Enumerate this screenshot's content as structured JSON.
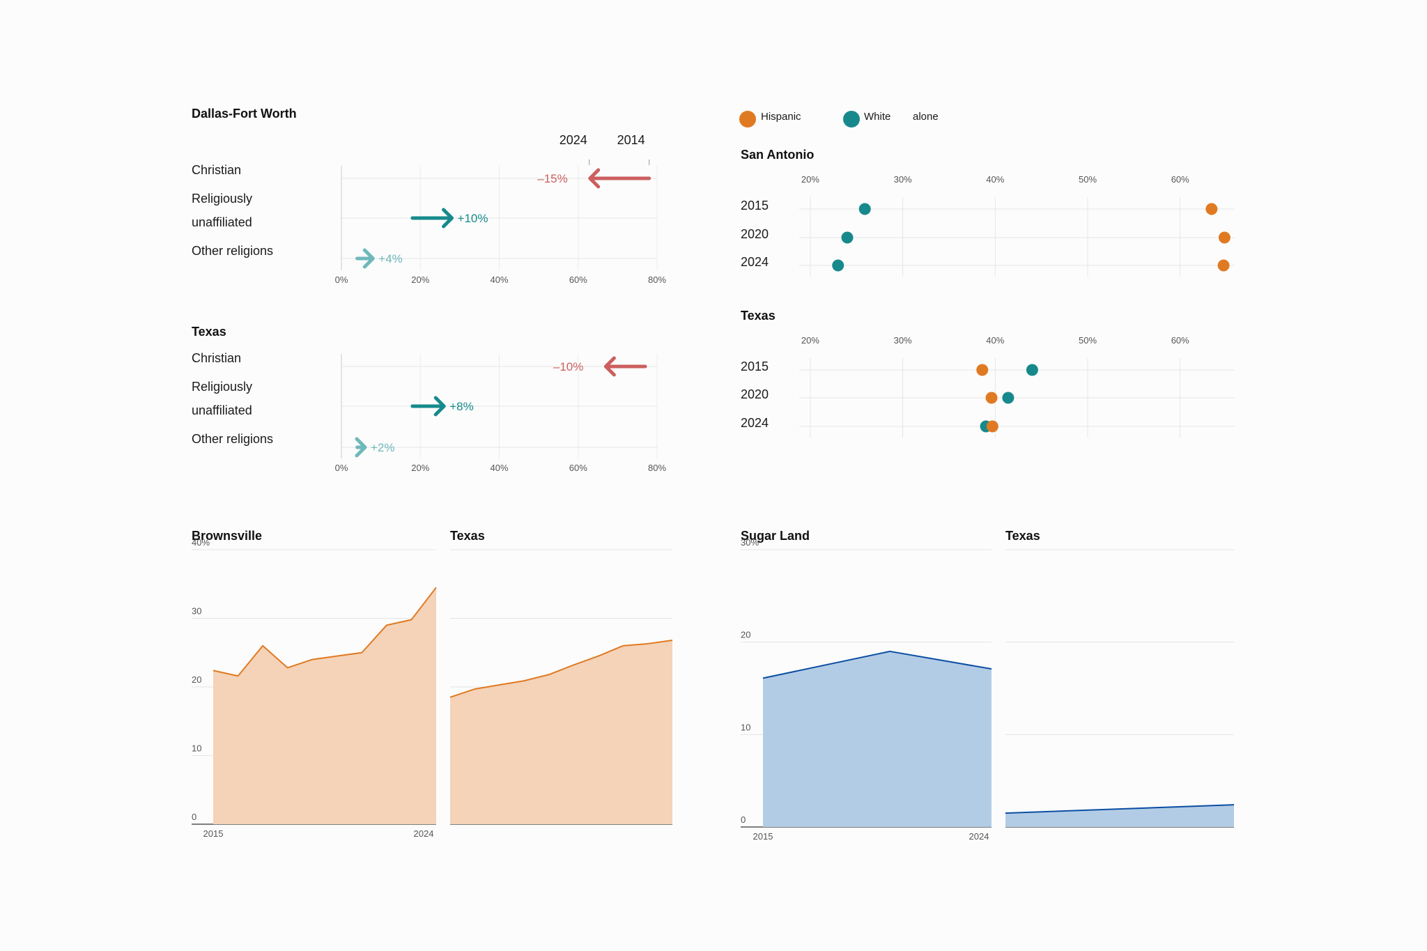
{
  "colors": {
    "christian": "#cc5f5f",
    "unaffiliated": "#168a8c",
    "other": "#6fb8bb",
    "hispanic": "#e07a22",
    "white": "#17898c",
    "area_orange_line": "#e07a22",
    "area_orange_fill": "#f4d3b8",
    "area_blue_line": "#0b4ea2",
    "area_blue_fill": "#b3cce6",
    "grid": "#e6e6e6"
  },
  "religion_panels": [
    {
      "title": "Dallas-Fort Worth",
      "show_year_labels": true,
      "year_labels": [
        "2024",
        "2014"
      ],
      "xlim": [
        0,
        80
      ],
      "ticks": [
        "0%",
        "20%",
        "40%",
        "60%",
        "80%"
      ],
      "rows": [
        {
          "label_lines": [
            "Christian"
          ],
          "from": 78,
          "to": 63,
          "delta": "–15%",
          "color_key": "christian"
        },
        {
          "label_lines": [
            "Religiously",
            "unaffiliated"
          ],
          "from": 18,
          "to": 28,
          "delta": "+10%",
          "color_key": "unaffiliated"
        },
        {
          "label_lines": [
            "Other religions"
          ],
          "from": 4,
          "to": 8,
          "delta": "+4%",
          "color_key": "other"
        }
      ]
    },
    {
      "title": "Texas",
      "show_year_labels": false,
      "year_labels": [],
      "xlim": [
        0,
        80
      ],
      "ticks": [
        "0%",
        "20%",
        "40%",
        "60%",
        "80%"
      ],
      "rows": [
        {
          "label_lines": [
            "Christian"
          ],
          "from": 77,
          "to": 67,
          "delta": "–10%",
          "color_key": "christian"
        },
        {
          "label_lines": [
            "Religiously",
            "unaffiliated"
          ],
          "from": 18,
          "to": 26,
          "delta": "+8%",
          "color_key": "unaffiliated"
        },
        {
          "label_lines": [
            "Other religions"
          ],
          "from": 4,
          "to": 6,
          "delta": "+2%",
          "color_key": "other"
        }
      ]
    }
  ],
  "dot_legend": [
    {
      "label": "Hispanic",
      "color_key": "hispanic"
    },
    {
      "label": "White",
      "color_key": "white"
    },
    {
      "label": "alone",
      "color_key": ""
    }
  ],
  "dot_panels": [
    {
      "title": "San Antonio",
      "xlim": [
        18.8,
        65.9
      ],
      "ticks": [
        20,
        30,
        40,
        50,
        60
      ],
      "tick_labels": [
        "20%",
        "30%",
        "40%",
        "50%",
        "60%"
      ],
      "rows": [
        {
          "year": "2015",
          "hispanic": 63.4,
          "white": 25.9
        },
        {
          "year": "2020",
          "hispanic": 64.8,
          "white": 24.0
        },
        {
          "year": "2024",
          "hispanic": 64.7,
          "white": 23.0
        }
      ]
    },
    {
      "title": "Texas",
      "xlim": [
        18.8,
        65.9
      ],
      "ticks": [
        20,
        30,
        40,
        50,
        60
      ],
      "tick_labels": [
        "20%",
        "30%",
        "40%",
        "50%",
        "60%"
      ],
      "rows": [
        {
          "year": "2015",
          "hispanic": 38.6,
          "white": 44.0
        },
        {
          "year": "2020",
          "hispanic": 39.6,
          "white": 41.4
        },
        {
          "year": "2024",
          "hispanic": 39.7,
          "white": 39.0
        }
      ]
    }
  ],
  "area_groups": [
    {
      "color": "orange",
      "ylim": [
        0,
        40
      ],
      "ytick_values": [
        0,
        10,
        20,
        30,
        40
      ],
      "ytick_labels": [
        "0",
        "10",
        "20",
        "30",
        "40%"
      ],
      "x_labels": [
        "2015",
        "2024"
      ],
      "panels": [
        {
          "title": "Brownsville",
          "x": [
            2015,
            2016,
            2017,
            2018,
            2019,
            2020,
            2021,
            2022,
            2023,
            2024
          ],
          "values": [
            22.4,
            21.6,
            26.0,
            22.8,
            24.0,
            24.5,
            25.0,
            29.0,
            29.8,
            34.5
          ]
        },
        {
          "title": "Texas",
          "x": [
            2015,
            2016,
            2017,
            2018,
            2019,
            2020,
            2021,
            2022,
            2023,
            2024
          ],
          "values": [
            18.5,
            19.7,
            20.3,
            20.9,
            21.8,
            23.2,
            24.5,
            26.0,
            26.3,
            26.8
          ]
        }
      ]
    },
    {
      "color": "blue",
      "ylim": [
        0,
        30
      ],
      "ytick_values": [
        0,
        10,
        20,
        30
      ],
      "ytick_labels": [
        "0",
        "10",
        "20",
        "30%"
      ],
      "x_labels": [
        "2015",
        "2024"
      ],
      "panels": [
        {
          "title": "Sugar Land",
          "x": [
            2015,
            2020,
            2024
          ],
          "values": [
            16.1,
            19.0,
            17.1
          ]
        },
        {
          "title": "Texas",
          "x": [
            2015,
            2024
          ],
          "values": [
            1.5,
            2.4
          ]
        }
      ]
    }
  ]
}
